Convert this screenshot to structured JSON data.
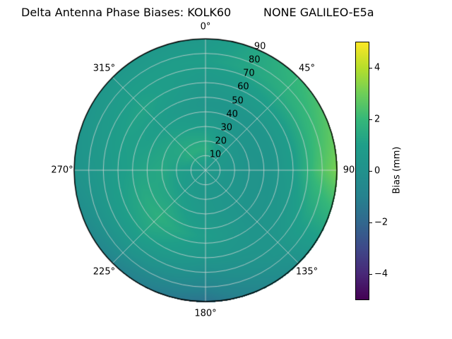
{
  "title": "Delta Antenna Phase Biases: KOLK60         NONE GALILEO-E5a",
  "chart_data": {
    "type": "heatmap",
    "projection": "polar",
    "title": "Delta Antenna Phase Biases: KOLK60         NONE GALILEO-E5a",
    "colormap": "viridis",
    "grid": true,
    "colorbar": {
      "label": "Bias (mm)",
      "min": -5,
      "max": 5,
      "ticks": [
        {
          "value": 4,
          "label": "4"
        },
        {
          "value": 2,
          "label": "2"
        },
        {
          "value": 0,
          "label": "0"
        },
        {
          "value": -2,
          "label": "−2"
        },
        {
          "value": -4,
          "label": "−4"
        }
      ]
    },
    "angular_ticks": [
      {
        "angle": 0,
        "label": "0°"
      },
      {
        "angle": 45,
        "label": "45°"
      },
      {
        "angle": 90,
        "label": "90"
      },
      {
        "angle": 135,
        "label": "135°"
      },
      {
        "angle": 180,
        "label": "180°"
      },
      {
        "angle": 225,
        "label": "225°"
      },
      {
        "angle": 270,
        "label": "270°"
      },
      {
        "angle": 315,
        "label": "315°"
      }
    ],
    "radial_ticks": [
      {
        "value": 10,
        "label": "10"
      },
      {
        "value": 20,
        "label": "20"
      },
      {
        "value": 30,
        "label": "30"
      },
      {
        "value": 40,
        "label": "40"
      },
      {
        "value": 50,
        "label": "50"
      },
      {
        "value": 60,
        "label": "60"
      },
      {
        "value": 70,
        "label": "70"
      },
      {
        "value": 80,
        "label": "80"
      },
      {
        "value": 90,
        "label": "90"
      }
    ],
    "radial_label_angle": 22.5,
    "radial_max": 90,
    "azimuth_deg": [
      0,
      45,
      90,
      135,
      180,
      225,
      270,
      315,
      360
    ],
    "zenith_deg": [
      0,
      15,
      30,
      45,
      60,
      75,
      90
    ],
    "bias_mm": [
      [
        0.6,
        1.6,
        0.9,
        0.4,
        0.6,
        1.0,
        0.6
      ],
      [
        0.6,
        0.6,
        0.3,
        0.3,
        0.9,
        1.6,
        2.0
      ],
      [
        0.6,
        0.4,
        0.2,
        0.3,
        0.9,
        2.2,
        3.2
      ],
      [
        0.6,
        0.4,
        0.3,
        0.2,
        0.3,
        0.4,
        0.0
      ],
      [
        0.6,
        0.5,
        0.6,
        0.9,
        0.4,
        -0.5,
        -1.6
      ],
      [
        0.6,
        0.7,
        1.2,
        1.7,
        1.2,
        0.3,
        -0.9
      ],
      [
        0.6,
        0.9,
        1.4,
        1.2,
        0.9,
        0.5,
        0.2
      ],
      [
        0.6,
        1.6,
        1.2,
        0.9,
        1.2,
        0.9,
        0.5
      ],
      [
        0.6,
        1.6,
        0.9,
        0.4,
        0.6,
        1.0,
        0.6
      ]
    ]
  }
}
